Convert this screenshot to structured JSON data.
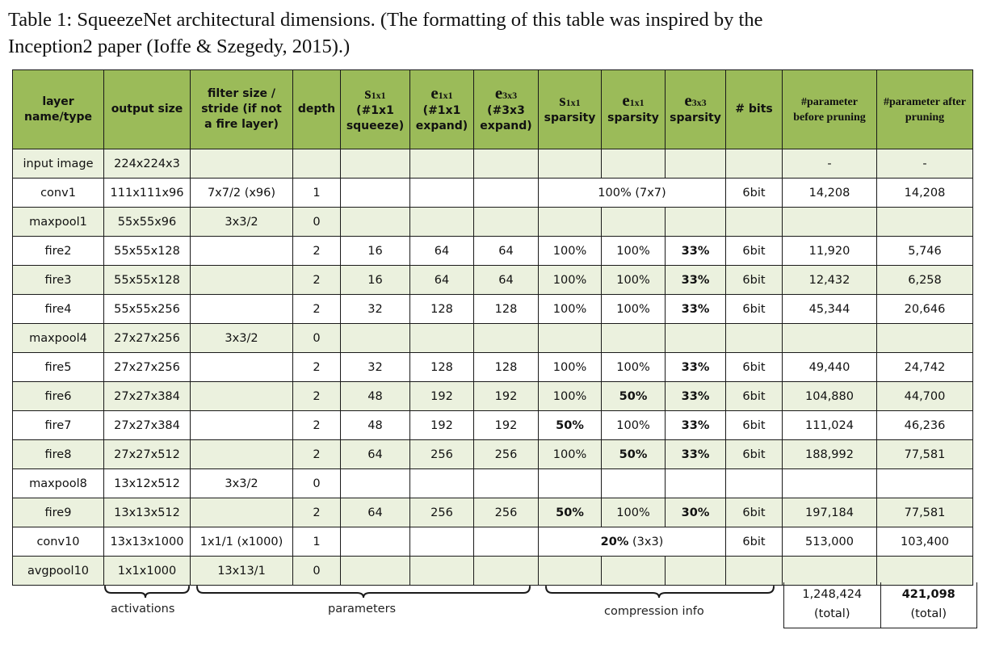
{
  "caption": {
    "line1": "Table 1: SqueezeNet architectural dimensions. (The formatting of this table was inspired by the",
    "line2": "Inception2 paper (Ioffe & Szegedy, 2015).)"
  },
  "headers": {
    "layer": "layer name/type",
    "output": "output size",
    "filter": "filter size / stride (if not a fire layer)",
    "depth": "depth",
    "s1x1_main": "s",
    "s1x1_sub": "1x1",
    "s1x1_desc": "(#1x1 squeeze)",
    "e1x1_main": "e",
    "e1x1_sub": "1x1",
    "e1x1_desc": "(#1x1 expand)",
    "e3x3_main": "e",
    "e3x3_sub": "3x3",
    "e3x3_desc": "(#3x3 expand)",
    "ss1_main": "s",
    "ss1_sub": "1x1",
    "ss1_desc": "sparsity",
    "se1_main": "e",
    "se1_sub": "1x1",
    "se1_desc": "sparsity",
    "se3_main": "e",
    "se3_sub": "3x3",
    "se3_desc": "sparsity",
    "bits": "# bits",
    "before": "#parameter before pruning",
    "after": "#parameter after pruning"
  },
  "rows": [
    {
      "name": "input image",
      "out": "224x224x3",
      "filter": "",
      "depth": "",
      "s1": "",
      "e1": "",
      "e3": "",
      "sp1": "",
      "sp2": "",
      "sp3": "",
      "bits": "",
      "before": "-",
      "after": "-"
    },
    {
      "name": "conv1",
      "out": "111x111x96",
      "filter": "7x7/2 (x96)",
      "depth": "1",
      "s1": "",
      "e1": "",
      "e3": "",
      "merged": "100% (7x7)",
      "bits": "6bit",
      "before": "14,208",
      "after": "14,208"
    },
    {
      "name": "maxpool1",
      "out": "55x55x96",
      "filter": "3x3/2",
      "depth": "0",
      "s1": "",
      "e1": "",
      "e3": "",
      "sp1": "",
      "sp2": "",
      "sp3": "",
      "bits": "",
      "before": "",
      "after": ""
    },
    {
      "name": "fire2",
      "out": "55x55x128",
      "filter": "",
      "depth": "2",
      "s1": "16",
      "e1": "64",
      "e3": "64",
      "sp1": "100%",
      "sp2": "100%",
      "sp3": "33%",
      "bits": "6bit",
      "before": "11,920",
      "after": "5,746"
    },
    {
      "name": "fire3",
      "out": "55x55x128",
      "filter": "",
      "depth": "2",
      "s1": "16",
      "e1": "64",
      "e3": "64",
      "sp1": "100%",
      "sp2": "100%",
      "sp3": "33%",
      "bits": "6bit",
      "before": "12,432",
      "after": "6,258"
    },
    {
      "name": "fire4",
      "out": "55x55x256",
      "filter": "",
      "depth": "2",
      "s1": "32",
      "e1": "128",
      "e3": "128",
      "sp1": "100%",
      "sp2": "100%",
      "sp3": "33%",
      "bits": "6bit",
      "before": "45,344",
      "after": "20,646"
    },
    {
      "name": "maxpool4",
      "out": "27x27x256",
      "filter": "3x3/2",
      "depth": "0",
      "s1": "",
      "e1": "",
      "e3": "",
      "sp1": "",
      "sp2": "",
      "sp3": "",
      "bits": "",
      "before": "",
      "after": ""
    },
    {
      "name": "fire5",
      "out": "27x27x256",
      "filter": "",
      "depth": "2",
      "s1": "32",
      "e1": "128",
      "e3": "128",
      "sp1": "100%",
      "sp2": "100%",
      "sp3": "33%",
      "bits": "6bit",
      "before": "49,440",
      "after": "24,742"
    },
    {
      "name": "fire6",
      "out": "27x27x384",
      "filter": "",
      "depth": "2",
      "s1": "48",
      "e1": "192",
      "e3": "192",
      "sp1": "100%",
      "sp2": "50%",
      "sp3": "33%",
      "bits": "6bit",
      "before": "104,880",
      "after": "44,700"
    },
    {
      "name": "fire7",
      "out": "27x27x384",
      "filter": "",
      "depth": "2",
      "s1": "48",
      "e1": "192",
      "e3": "192",
      "sp1": "50%",
      "sp2": "100%",
      "sp3": "33%",
      "bits": "6bit",
      "before": "111,024",
      "after": "46,236"
    },
    {
      "name": "fire8",
      "out": "27x27x512",
      "filter": "",
      "depth": "2",
      "s1": "64",
      "e1": "256",
      "e3": "256",
      "sp1": "100%",
      "sp2": "50%",
      "sp3": "33%",
      "bits": "6bit",
      "before": "188,992",
      "after": "77,581"
    },
    {
      "name": "maxpool8",
      "out": "13x12x512",
      "filter": "3x3/2",
      "depth": "0",
      "s1": "",
      "e1": "",
      "e3": "",
      "sp1": "",
      "sp2": "",
      "sp3": "",
      "bits": "",
      "before": "",
      "after": ""
    },
    {
      "name": "fire9",
      "out": "13x13x512",
      "filter": "",
      "depth": "2",
      "s1": "64",
      "e1": "256",
      "e3": "256",
      "sp1": "50%",
      "sp2": "100%",
      "sp3": "30%",
      "bits": "6bit",
      "before": "197,184",
      "after": "77,581"
    },
    {
      "name": "conv10",
      "out": "13x13x1000",
      "filter": "1x1/1 (x1000)",
      "depth": "1",
      "s1": "",
      "e1": "",
      "e3": "",
      "merged_bold": "20%",
      "merged_rest": " (3x3)",
      "bits": "6bit",
      "before": "513,000",
      "after": "103,400"
    },
    {
      "name": "avgpool10",
      "out": "1x1x1000",
      "filter": "13x13/1",
      "depth": "0",
      "s1": "",
      "e1": "",
      "e3": "",
      "sp1": "",
      "sp2": "",
      "sp3": "",
      "bits": "",
      "before": "",
      "after": ""
    }
  ],
  "groups": {
    "activations": "activations",
    "parameters": "parameters",
    "compression": "compression info"
  },
  "totals": {
    "before_value": "1,248,424",
    "before_label": "(total)",
    "after_value": "421,098",
    "after_label": "(total)"
  }
}
